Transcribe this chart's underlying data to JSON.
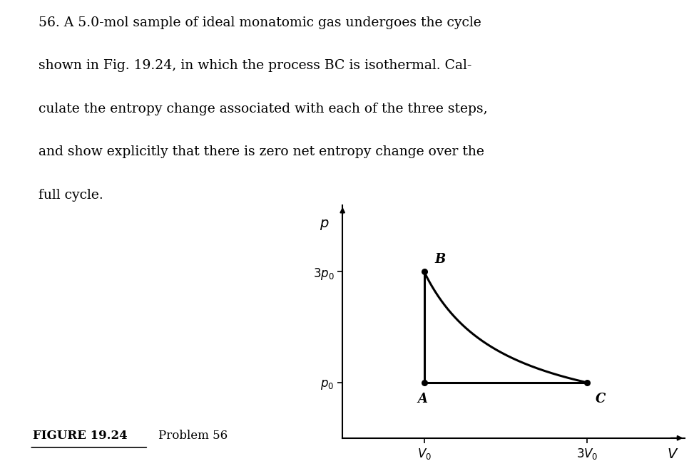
{
  "title_lines": [
    "56. A 5.0-mol sample of ideal monatomic gas undergoes the cycle",
    "shown in Fig. 19.24, in which the process BC is isothermal. Cal-",
    "culate the entropy change associated with each of the three steps,",
    "and show explicitly that there is zero net entropy change over the",
    "full cycle."
  ],
  "figure_label": "FIGURE 19.24",
  "figure_caption": "Problem 56",
  "points": {
    "A": [
      1,
      1
    ],
    "B": [
      1,
      3
    ],
    "C": [
      3,
      1
    ]
  },
  "yticks": [
    1,
    3
  ],
  "ytick_labels": [
    "$p_0$",
    "$3p_0$"
  ],
  "xticks": [
    1,
    3
  ],
  "xtick_labels": [
    "$V_0$",
    "$3V_0$"
  ],
  "ylabel": "$p$",
  "xlabel": "$V$",
  "background_color": "#ffffff",
  "line_color": "#000000",
  "point_color": "#000000",
  "text_color": "#000000",
  "xlim": [
    0,
    4.2
  ],
  "ylim": [
    0,
    4.2
  ]
}
